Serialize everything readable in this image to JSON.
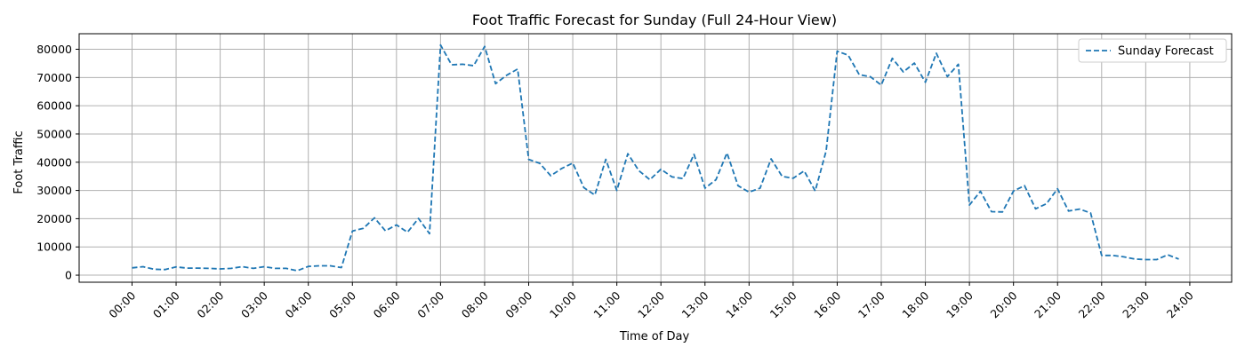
{
  "chart_data": {
    "type": "line",
    "title": "Foot Traffic Forecast for Sunday (Full 24-Hour View)",
    "xlabel": "Time of Day",
    "ylabel": "Foot Traffic",
    "x_ticks": [
      "00:00",
      "01:00",
      "02:00",
      "03:00",
      "04:00",
      "05:00",
      "06:00",
      "07:00",
      "08:00",
      "09:00",
      "10:00",
      "11:00",
      "12:00",
      "13:00",
      "14:00",
      "15:00",
      "16:00",
      "17:00",
      "18:00",
      "19:00",
      "20:00",
      "21:00",
      "22:00",
      "23:00",
      "24:00"
    ],
    "y_ticks": [
      0,
      10000,
      20000,
      30000,
      40000,
      50000,
      60000,
      70000,
      80000
    ],
    "xlim": [
      -1.2,
      24.95
    ],
    "ylim": [
      -2500,
      85500
    ],
    "grid": true,
    "legend_position": "top-right",
    "series_color": "#1f77b4",
    "line_style": "dashed",
    "series": [
      {
        "name": "Sunday Forecast",
        "x": [
          "00:00",
          "00:15",
          "00:30",
          "00:45",
          "01:00",
          "01:15",
          "01:30",
          "01:45",
          "02:00",
          "02:15",
          "02:30",
          "02:45",
          "03:00",
          "03:15",
          "03:30",
          "03:45",
          "04:00",
          "04:15",
          "04:30",
          "04:45",
          "05:00",
          "05:15",
          "05:30",
          "05:45",
          "06:00",
          "06:15",
          "06:30",
          "06:45",
          "07:00",
          "07:15",
          "07:30",
          "07:45",
          "08:00",
          "08:15",
          "08:30",
          "08:45",
          "09:00",
          "09:15",
          "09:30",
          "09:45",
          "10:00",
          "10:15",
          "10:30",
          "10:45",
          "11:00",
          "11:15",
          "11:30",
          "11:45",
          "12:00",
          "12:15",
          "12:30",
          "12:45",
          "13:00",
          "13:15",
          "13:30",
          "13:45",
          "14:00",
          "14:15",
          "14:30",
          "14:45",
          "15:00",
          "15:15",
          "15:30",
          "15:45",
          "16:00",
          "16:15",
          "16:30",
          "16:45",
          "17:00",
          "17:15",
          "17:30",
          "17:45",
          "18:00",
          "18:15",
          "18:30",
          "18:45",
          "19:00",
          "19:15",
          "19:30",
          "19:45",
          "20:00",
          "20:15",
          "20:30",
          "20:45",
          "21:00",
          "21:15",
          "21:30",
          "21:45",
          "22:00",
          "22:15",
          "22:30",
          "22:45",
          "23:00",
          "23:15",
          "23:30",
          "23:45"
        ],
        "values": [
          2600,
          3000,
          2100,
          2000,
          2900,
          2500,
          2500,
          2400,
          2200,
          2400,
          3000,
          2400,
          3000,
          2400,
          2400,
          1600,
          3100,
          3300,
          3300,
          2700,
          15600,
          16600,
          20300,
          15700,
          17800,
          15200,
          20100,
          14700,
          81500,
          74500,
          74700,
          74200,
          81000,
          67800,
          70800,
          73000,
          41000,
          39600,
          35200,
          37800,
          39700,
          31000,
          28400,
          41000,
          30000,
          43000,
          37000,
          33800,
          37500,
          34800,
          34200,
          42800,
          30800,
          33800,
          43300,
          31700,
          29400,
          30800,
          41200,
          35000,
          34300,
          36900,
          29800,
          44000,
          79300,
          77900,
          71000,
          70300,
          67300,
          76800,
          72000,
          75100,
          68300,
          78600,
          70300,
          74700,
          24800,
          29700,
          22500,
          22400,
          29800,
          31700,
          23500,
          25300,
          30600,
          22700,
          23400,
          22000,
          7000,
          7000,
          6500,
          5700,
          5500,
          5500,
          7200,
          5700
        ]
      }
    ]
  }
}
